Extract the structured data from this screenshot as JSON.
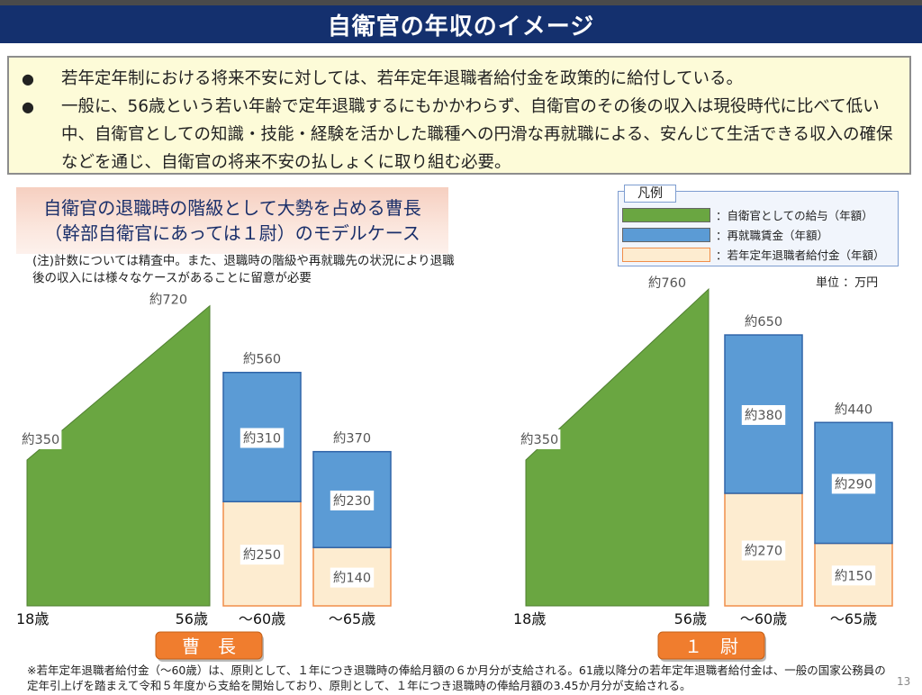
{
  "title": "自衛官の年収のイメージ",
  "intro": {
    "bullet1": "若年定年制における将来不安に対しては、若年定年退職者給付金を政策的に給付している。",
    "bullet2": "一般に、56歳という若い年齢で定年退職するにもかかわらず、自衛官のその後の収入は現役時代に比べて低い中、自衛官としての知識・技能・経験を活かした職種への円滑な再就職による、安んじて生活できる収入の確保などを通じ、自衛官の将来不安の払しょくに取り組む必要。",
    "bullet_mark": "●"
  },
  "model_case": {
    "line1": "自衛官の退職時の階級として大勢を占める曹長",
    "line2": "（幹部自衛官にあっては１尉）のモデルケース"
  },
  "note": "(注)計数については精査中。また、退職時の階級や再就職先の状況により退職後の収入には様々なケースがあることに留意が必要",
  "legend": {
    "title": "凡例",
    "items": [
      {
        "label": "：自衛官としての給与（年額）",
        "color": "#6aa641"
      },
      {
        "label": "：再就職賃金（年額）",
        "color": "#5b9bd5"
      },
      {
        "label": "：若年定年退職者給付金（年額）",
        "color": "#fdecd0"
      }
    ]
  },
  "unit": "単位 ：万円",
  "colors": {
    "salary": "#6aa641",
    "salary_border": "#4f7f30",
    "reemploy": "#5b9bd5",
    "reemploy_border": "#2f64a8",
    "benefit": "#fdecd0",
    "benefit_border": "#f08e4a",
    "rank_fill": "#f07d2e",
    "title_bg": "#14306e"
  },
  "chart_data": [
    {
      "type": "bar",
      "rank_label": "曹　長",
      "salary": {
        "start_age": "18歳",
        "end_age": "56歳",
        "start": 350,
        "end": 720,
        "start_label": "約350",
        "end_label": "約720"
      },
      "periods": [
        {
          "name": "～60歳",
          "total": 560,
          "reemploy": 310,
          "benefit": 250,
          "total_label": "約560",
          "reemploy_label": "約310",
          "benefit_label": "約250"
        },
        {
          "name": "～65歳",
          "total": 370,
          "reemploy": 230,
          "benefit": 140,
          "total_label": "約370",
          "reemploy_label": "約230",
          "benefit_label": "約140"
        }
      ]
    },
    {
      "type": "bar",
      "rank_label": "１　尉",
      "salary": {
        "start_age": "18歳",
        "end_age": "56歳",
        "start": 350,
        "end": 760,
        "start_label": "約350",
        "end_label": "約760"
      },
      "periods": [
        {
          "name": "～60歳",
          "total": 650,
          "reemploy": 380,
          "benefit": 270,
          "total_label": "約650",
          "reemploy_label": "約380",
          "benefit_label": "約270"
        },
        {
          "name": "～65歳",
          "total": 440,
          "reemploy": 290,
          "benefit": 150,
          "total_label": "約440",
          "reemploy_label": "約290",
          "benefit_label": "約150"
        }
      ]
    }
  ],
  "footnote": "※若年定年退職者給付金（～60歳）は、原則として、１年につき退職時の俸給月額の６か月分が支給される。61歳以降分の若年定年退職者給付金は、一般の国家公務員の定年引上げを踏まえて令和５年度から支給を開始しており、原則として、１年につき退職時の俸給月額の3.45か月分が支給される。",
  "page_number": "13"
}
